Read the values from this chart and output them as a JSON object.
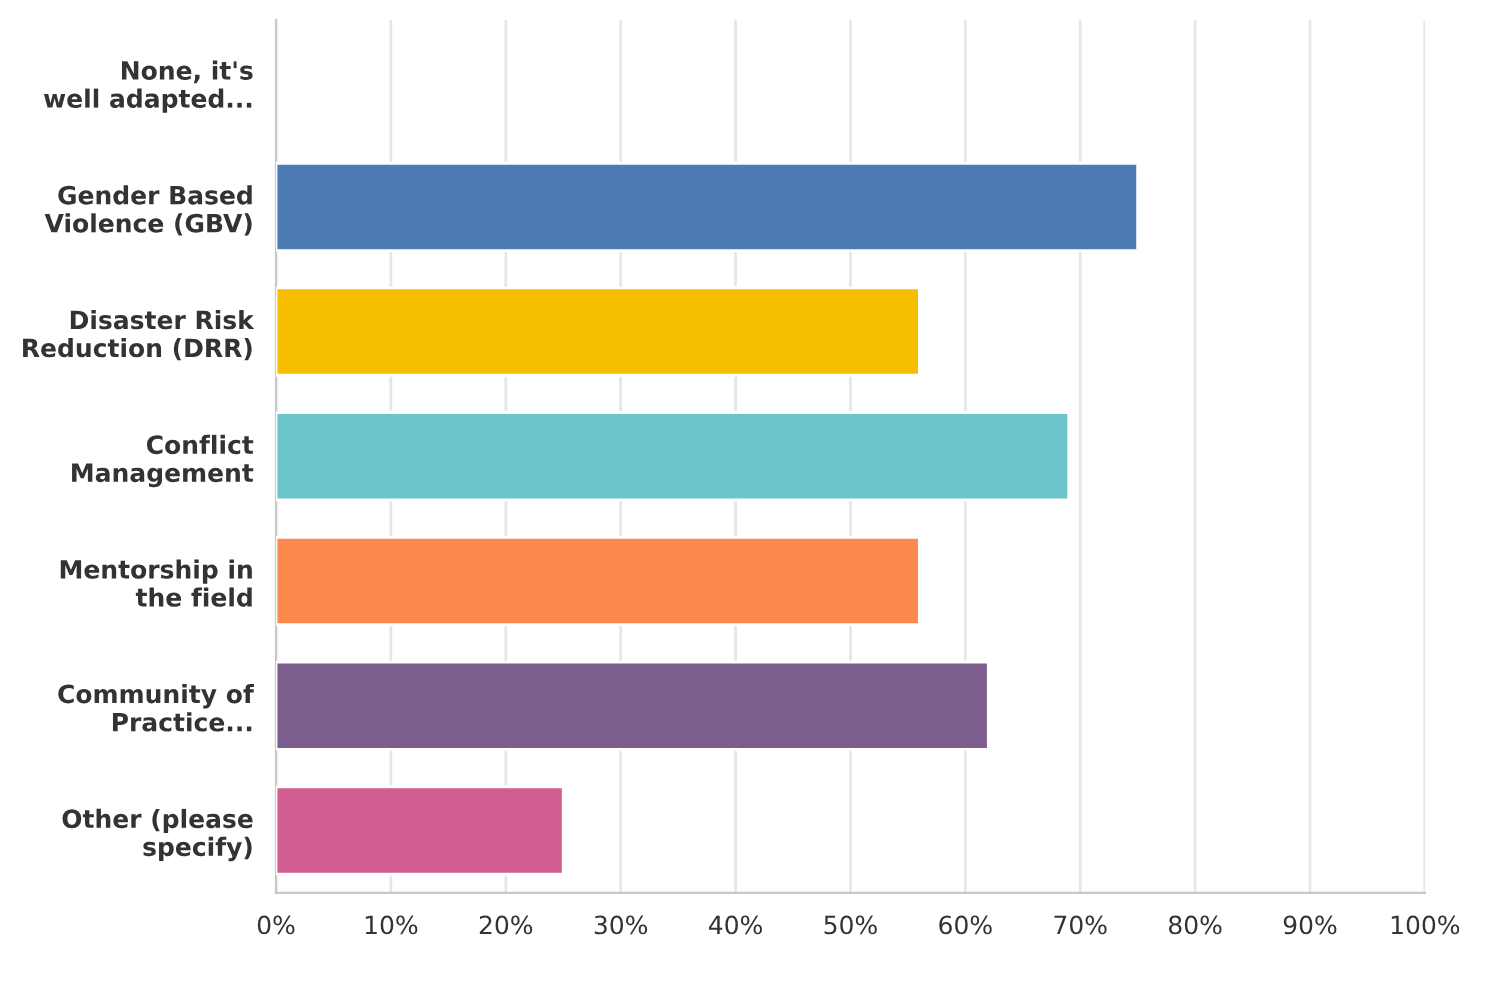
{
  "chart_data": {
    "type": "bar",
    "orientation": "horizontal",
    "categories": [
      "None, it's\nwell adapted...",
      "Gender Based\nViolence (GBV)",
      "Disaster Risk\nReduction (DRR)",
      "Conflict\nManagement",
      "Mentorship in\nthe field",
      "Community of\nPractice...",
      "Other (please\nspecify)"
    ],
    "values": [
      0,
      75,
      56,
      69,
      56,
      62,
      25
    ],
    "colors": [
      null,
      "#4f7bb4",
      "#f6bf00",
      "#6cc5cc",
      "#fc8a4f",
      "#7c5e8e",
      "#d05e91"
    ],
    "xlim": [
      0,
      100
    ],
    "xticks": [
      {
        "value": 0,
        "label": "0%"
      },
      {
        "value": 10,
        "label": "10%"
      },
      {
        "value": 20,
        "label": "20%"
      },
      {
        "value": 30,
        "label": "30%"
      },
      {
        "value": 40,
        "label": "40%"
      },
      {
        "value": 50,
        "label": "50%"
      },
      {
        "value": 60,
        "label": "60%"
      },
      {
        "value": 70,
        "label": "70%"
      },
      {
        "value": 80,
        "label": "80%"
      },
      {
        "value": 90,
        "label": "90%"
      },
      {
        "value": 100,
        "label": "100%"
      }
    ],
    "grid": "x"
  }
}
